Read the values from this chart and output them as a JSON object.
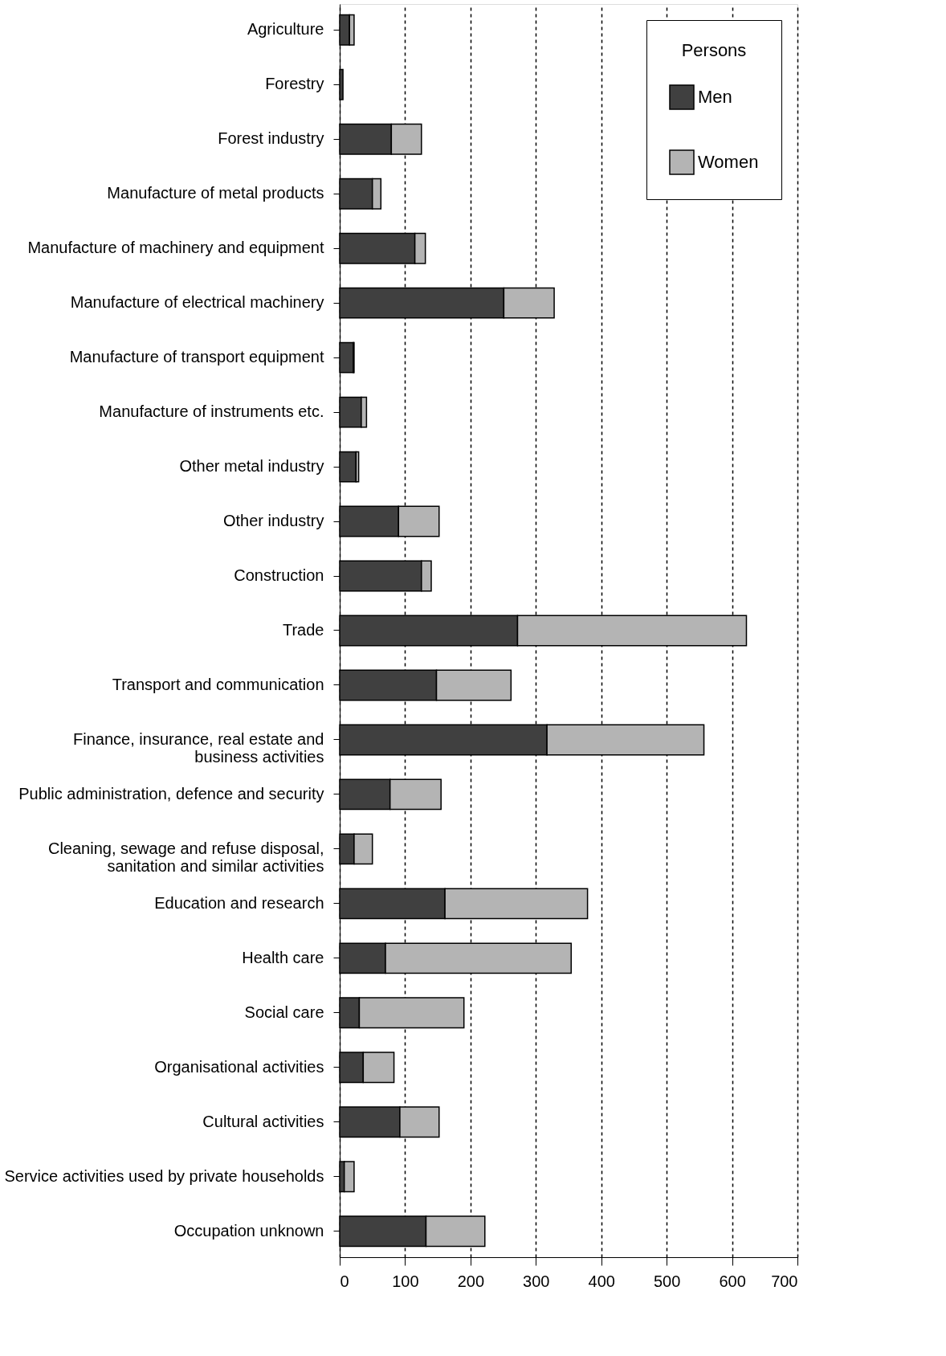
{
  "chart_data": {
    "type": "bar",
    "orientation": "horizontal",
    "stacked": true,
    "legend_title": "Persons",
    "legend": "top right",
    "grid": "x",
    "categories": [
      "Agriculture",
      "Forestry",
      "Forest industry",
      "Manufacture of metal products",
      "Manufacture of machinery and equipment",
      "Manufacture of electrical machinery",
      "Manufacture of transport equipment",
      "Manufacture of instruments etc.",
      "Other metal industry",
      "Other industry",
      "Construction",
      "Trade",
      "Transport and communication",
      "Finance, insurance, real estate and business activities",
      "Public administration, defence and security",
      "Cleaning, sewage and refuse disposal, sanitation and similar activities",
      "Education and research",
      "Health care",
      "Social care",
      "Organisational activities",
      "Cultural activities",
      "Service activities used by private households",
      "Occupation unknown"
    ],
    "series": [
      {
        "name": "Men",
        "color": "#404040",
        "values": [
          15,
          5,
          79,
          50,
          115,
          251,
          21,
          33,
          25,
          90,
          125,
          272,
          148,
          317,
          77,
          22,
          161,
          70,
          30,
          36,
          92,
          7,
          132
        ]
      },
      {
        "name": "Women",
        "color": "#b4b4b4",
        "values": [
          7,
          null,
          46,
          13,
          16,
          77,
          1,
          8,
          4,
          62,
          15,
          350,
          114,
          240,
          78,
          28,
          218,
          284,
          160,
          47,
          60,
          15,
          90
        ]
      }
    ],
    "xlim": [
      0,
      700
    ],
    "xticks": [
      0,
      100,
      200,
      300,
      400,
      500,
      600,
      700
    ]
  }
}
